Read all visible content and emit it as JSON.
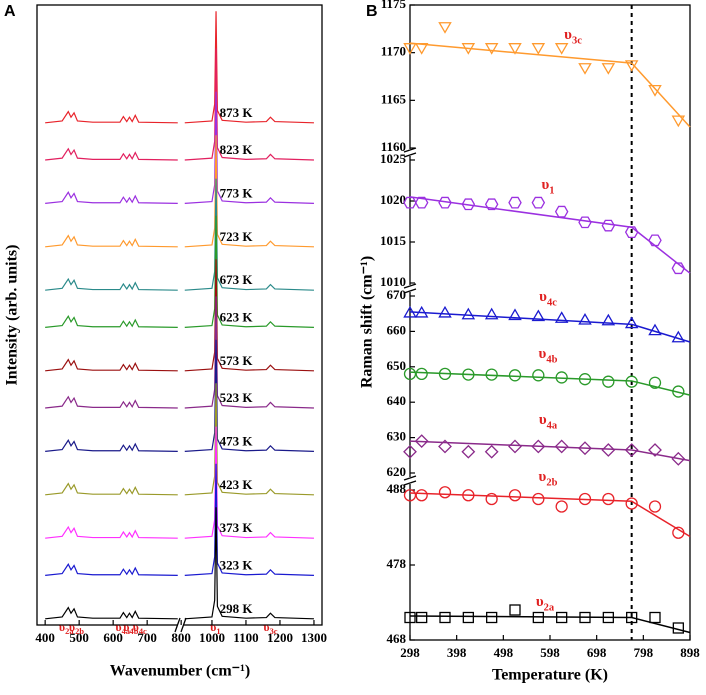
{
  "chart_data": [
    {
      "type": "line",
      "panel": "A",
      "xlabel": "Wavenumber (cm⁻¹)",
      "ylabel": "Intensity (arb. units)",
      "xlim": [
        376,
        1324
      ],
      "xbreak": [
        800,
        910
      ],
      "xticks": [
        400,
        500,
        600,
        700,
        800,
        1000,
        1100,
        1200,
        1300
      ],
      "ylim": [
        0,
        100
      ],
      "x": [
        400,
        450,
        468,
        476,
        485,
        495,
        540,
        620,
        630,
        640,
        648,
        656,
        665,
        675,
        790,
        850,
        920,
        1000,
        1008,
        1012,
        1016,
        1030,
        1100,
        1160,
        1172,
        1185,
        1300
      ],
      "series": [
        {
          "name": "873 K",
          "color": "#e8232a",
          "values": [
            81,
            81.3,
            82.8,
            81.9,
            82.6,
            81.3,
            81.1,
            81.1,
            82,
            81.2,
            81.9,
            81.2,
            82.2,
            81.1,
            81,
            null,
            81,
            81.3,
            84,
            99,
            83,
            81.4,
            81.1,
            81.2,
            81.9,
            81.2,
            81
          ]
        },
        {
          "name": "823 K",
          "color": "#e2205f",
          "values": [
            75,
            75.3,
            76.8,
            75.9,
            76.6,
            75.3,
            75.1,
            75.1,
            76,
            75.2,
            75.9,
            75.2,
            76.2,
            75.1,
            75,
            null,
            75,
            75.3,
            78,
            93,
            77,
            75.4,
            75.1,
            75.2,
            75.9,
            75.2,
            75
          ]
        },
        {
          "name": "773 K",
          "color": "#9b30e0",
          "values": [
            68,
            68.3,
            69.8,
            68.9,
            69.6,
            68.3,
            68.1,
            68.1,
            69,
            68.2,
            68.9,
            68.2,
            69.2,
            68.1,
            68,
            null,
            68,
            68.3,
            71,
            86,
            70,
            68.4,
            68.1,
            68.2,
            68.9,
            68.2,
            68
          ]
        },
        {
          "name": "723 K",
          "color": "#ff9a2e",
          "values": [
            61,
            61.3,
            62.8,
            61.9,
            62.6,
            61.3,
            61.1,
            61.1,
            62,
            61.2,
            61.9,
            61.2,
            62.2,
            61.1,
            61,
            null,
            61,
            61.3,
            64,
            79,
            63,
            61.4,
            61.1,
            61.2,
            61.9,
            61.2,
            61
          ]
        },
        {
          "name": "673 K",
          "color": "#2a8a8a",
          "values": [
            54,
            54.3,
            55.8,
            54.9,
            55.6,
            54.3,
            54.1,
            54.1,
            55,
            54.2,
            54.9,
            54.2,
            55.2,
            54.1,
            54,
            null,
            54,
            54.3,
            57,
            72,
            56,
            54.4,
            54.1,
            54.2,
            54.9,
            54.2,
            54
          ]
        },
        {
          "name": "623 K",
          "color": "#2a9a2a",
          "values": [
            48,
            48.3,
            49.8,
            48.9,
            49.6,
            48.3,
            48.1,
            48.1,
            49,
            48.2,
            48.9,
            48.2,
            49.2,
            48.1,
            48,
            null,
            48,
            48.3,
            51,
            66,
            50,
            48.4,
            48.1,
            48.2,
            48.9,
            48.2,
            48
          ]
        },
        {
          "name": "573 K",
          "color": "#9b1010",
          "values": [
            41,
            41.3,
            42.8,
            41.9,
            42.6,
            41.3,
            41.1,
            41.1,
            42,
            41.2,
            41.9,
            41.2,
            42.2,
            41.1,
            41,
            null,
            41,
            41.3,
            44,
            59,
            43,
            41.4,
            41.1,
            41.2,
            41.9,
            41.2,
            41
          ]
        },
        {
          "name": "523 K",
          "color": "#8a2a8a",
          "values": [
            35,
            35.3,
            36.8,
            35.9,
            36.6,
            35.3,
            35.1,
            35.1,
            36,
            35.2,
            35.9,
            35.2,
            36.2,
            35.1,
            35,
            null,
            35,
            35.3,
            38,
            53,
            37,
            35.4,
            35.1,
            35.2,
            35.9,
            35.2,
            35
          ]
        },
        {
          "name": "473 K",
          "color": "#1a1a8a",
          "values": [
            28,
            28.3,
            29.8,
            28.9,
            29.6,
            28.3,
            28.1,
            28.1,
            29,
            28.2,
            28.9,
            28.2,
            29.2,
            28.1,
            28,
            null,
            28,
            28.3,
            31,
            46,
            30,
            28.4,
            28.1,
            28.2,
            28.9,
            28.2,
            28
          ]
        },
        {
          "name": "423 K",
          "color": "#9a9a2a",
          "values": [
            21,
            21.3,
            22.8,
            21.9,
            22.6,
            21.3,
            21.1,
            21.1,
            22,
            21.2,
            21.9,
            21.2,
            22.2,
            21.1,
            21,
            null,
            21,
            21.3,
            24,
            39,
            23,
            21.4,
            21.1,
            21.2,
            21.9,
            21.2,
            21
          ]
        },
        {
          "name": "373 K",
          "color": "#ff30ff",
          "values": [
            14,
            14.3,
            15.8,
            14.9,
            15.6,
            14.3,
            14.1,
            14.1,
            15,
            14.2,
            14.9,
            14.2,
            15.2,
            14.1,
            14,
            null,
            14,
            14.3,
            17,
            32,
            16,
            14.4,
            14.1,
            14.2,
            14.9,
            14.2,
            14
          ]
        },
        {
          "name": "323 K",
          "color": "#1a1ad0",
          "values": [
            8,
            8.3,
            9.8,
            8.9,
            9.6,
            8.3,
            8.1,
            8.1,
            9,
            8.2,
            8.9,
            8.2,
            9.2,
            8.1,
            8,
            null,
            8,
            8.3,
            11,
            26,
            10,
            8.4,
            8.1,
            8.2,
            8.9,
            8.2,
            8
          ]
        },
        {
          "name": "298 K",
          "color": "#000000",
          "values": [
            1,
            1.3,
            2.8,
            1.9,
            2.6,
            1.3,
            1.1,
            1.1,
            2,
            1.2,
            1.9,
            1.2,
            2.2,
            1.1,
            1,
            null,
            1,
            1.3,
            4,
            19,
            3,
            1.4,
            1.1,
            1.2,
            1.9,
            1.2,
            1
          ]
        }
      ],
      "annotations": [
        {
          "symbol": "υ",
          "sub": "2a",
          "x": 462
        },
        {
          "symbol": "υ",
          "sub": "2b",
          "x": 492
        },
        {
          "symbol": "υ",
          "sub": "4a",
          "x": 628
        },
        {
          "symbol": "υ",
          "sub": "4b",
          "x": 652
        },
        {
          "symbol": "υ",
          "sub": "4c",
          "x": 678
        },
        {
          "symbol": "υ",
          "sub": "1",
          "x": 1010
        },
        {
          "symbol": "υ",
          "sub": "3c",
          "x": 1172
        }
      ]
    },
    {
      "type": "scatter",
      "panel": "B",
      "xlabel": "Temperature (K)",
      "ylabel": "Raman shift (cm⁻¹)",
      "xlim": [
        298,
        898
      ],
      "xticks": [
        298,
        398,
        498,
        598,
        698,
        798,
        898
      ],
      "vline": 773,
      "x": [
        298,
        323,
        373,
        423,
        473,
        523,
        573,
        623,
        673,
        723,
        773,
        823,
        873
      ],
      "ysegments": [
        {
          "ylim": [
            1160,
            1175
          ],
          "yticks": [
            1160,
            1165,
            1170,
            1175
          ]
        },
        {
          "ylim": [
            1010,
            1025
          ],
          "yticks": [
            1010,
            1015,
            1020,
            1025
          ]
        },
        {
          "ylim": [
            620,
            670
          ],
          "yticks": [
            620,
            630,
            640,
            650,
            660,
            670
          ]
        },
        {
          "ylim": [
            468,
            488
          ],
          "yticks": [
            468,
            478,
            488
          ]
        }
      ],
      "series": [
        {
          "label": {
            "symbol": "υ",
            "sub": "3c"
          },
          "color": "#ff9a2e",
          "marker": "down-triangle",
          "segment": 0,
          "values": [
            1170.6,
            1170.6,
            1172.8,
            1170.6,
            1170.6,
            1170.6,
            1170.6,
            1170.6,
            1168.5,
            1168.5,
            1168.8,
            1166.2,
            1163.0
          ],
          "fit": {
            "x": [
              298,
              773,
              898
            ],
            "values": [
              1171,
              1168.9,
              1162.2
            ]
          }
        },
        {
          "label": {
            "symbol": "υ",
            "sub": "1"
          },
          "color": "#9b30e0",
          "marker": "hexagon",
          "segment": 1,
          "values": [
            1019.8,
            1019.8,
            1019.8,
            1019.6,
            1019.6,
            1019.8,
            1019.8,
            1018.7,
            1017.4,
            1017,
            1016.2,
            1015.2,
            1011.8
          ],
          "fit": {
            "x": [
              298,
              773,
              898
            ],
            "values": [
              1020.5,
              1016.8,
              1011.2
            ]
          }
        },
        {
          "label": {
            "symbol": "υ",
            "sub": "4c"
          },
          "color": "#1a1ad0",
          "marker": "triangle",
          "segment": 2,
          "values": [
            665,
            665,
            665,
            664.5,
            664.5,
            664.3,
            664,
            663.5,
            663,
            662.8,
            662,
            660,
            658
          ],
          "fit": {
            "x": [
              298,
              773,
              898
            ],
            "values": [
              665.5,
              662,
              657
            ]
          }
        },
        {
          "label": {
            "symbol": "υ",
            "sub": "4b"
          },
          "color": "#2a9a2a",
          "marker": "circle",
          "segment": 2,
          "values": [
            648,
            648,
            648,
            647.8,
            647.8,
            647.6,
            647.6,
            647,
            646.5,
            645.8,
            645.8,
            645.5,
            643
          ],
          "fit": {
            "x": [
              298,
              773,
              898
            ],
            "values": [
              648.5,
              646,
              642
            ]
          }
        },
        {
          "label": {
            "symbol": "υ",
            "sub": "4a"
          },
          "color": "#8a2a8a",
          "marker": "diamond",
          "segment": 2,
          "values": [
            626,
            629,
            627.5,
            626,
            626,
            627.5,
            627.5,
            627.5,
            627,
            626.5,
            626.5,
            626.5,
            624
          ],
          "fit": {
            "x": [
              298,
              773,
              898
            ],
            "values": [
              629,
              626.5,
              623.5
            ]
          }
        },
        {
          "label": {
            "symbol": "υ",
            "sub": "2b"
          },
          "color": "#e8232a",
          "marker": "circle",
          "segment": 3,
          "values": [
            487.3,
            487.3,
            487.7,
            487.3,
            486.8,
            487.3,
            486.8,
            485.8,
            486.8,
            486.8,
            486.2,
            485.8,
            482.3
          ],
          "fit": {
            "x": [
              298,
              773,
              898
            ],
            "values": [
              487.6,
              486.5,
              481.8
            ]
          }
        },
        {
          "label": {
            "symbol": "υ",
            "sub": "2a"
          },
          "color": "#000000",
          "marker": "square",
          "segment": 3,
          "values": [
            471,
            471,
            471,
            471,
            471,
            472,
            471,
            471,
            471,
            471,
            471,
            471,
            469.6
          ],
          "fit": {
            "x": [
              298,
              773,
              898
            ],
            "values": [
              471.2,
              471,
              469
            ]
          }
        }
      ]
    }
  ]
}
